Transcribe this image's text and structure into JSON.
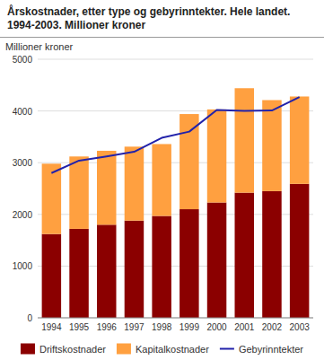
{
  "chart_data": {
    "type": "bar",
    "stacked": true,
    "title": "Årskostnader, etter type og gebyrinntekter. Hele landet.",
    "subtitle": "1994-2003. Millioner kroner",
    "y_label": "Millioner kroner",
    "categories": [
      "1994",
      "1995",
      "1996",
      "1997",
      "1998",
      "1999",
      "2000",
      "2001",
      "2002",
      "2003"
    ],
    "series": [
      {
        "name": "Driftskostnader",
        "color": "#8B0000",
        "values": [
          1620,
          1720,
          1800,
          1880,
          1970,
          2100,
          2230,
          2420,
          2450,
          2590
        ]
      },
      {
        "name": "Kapitalkostnader",
        "color": "#FFA040",
        "values": [
          1360,
          1400,
          1430,
          1430,
          1390,
          1840,
          1800,
          2020,
          1760,
          1690
        ]
      },
      {
        "name": "Gebyrinntekter",
        "type": "line",
        "color": "#2222AA",
        "values": [
          2800,
          3040,
          3120,
          3210,
          3480,
          3600,
          4020,
          4000,
          4010,
          4270
        ]
      }
    ],
    "ylim": [
      0,
      5000
    ],
    "yticks": [
      0,
      1000,
      2000,
      3000,
      4000,
      5000
    ],
    "grid": true,
    "legend": "bottom"
  }
}
